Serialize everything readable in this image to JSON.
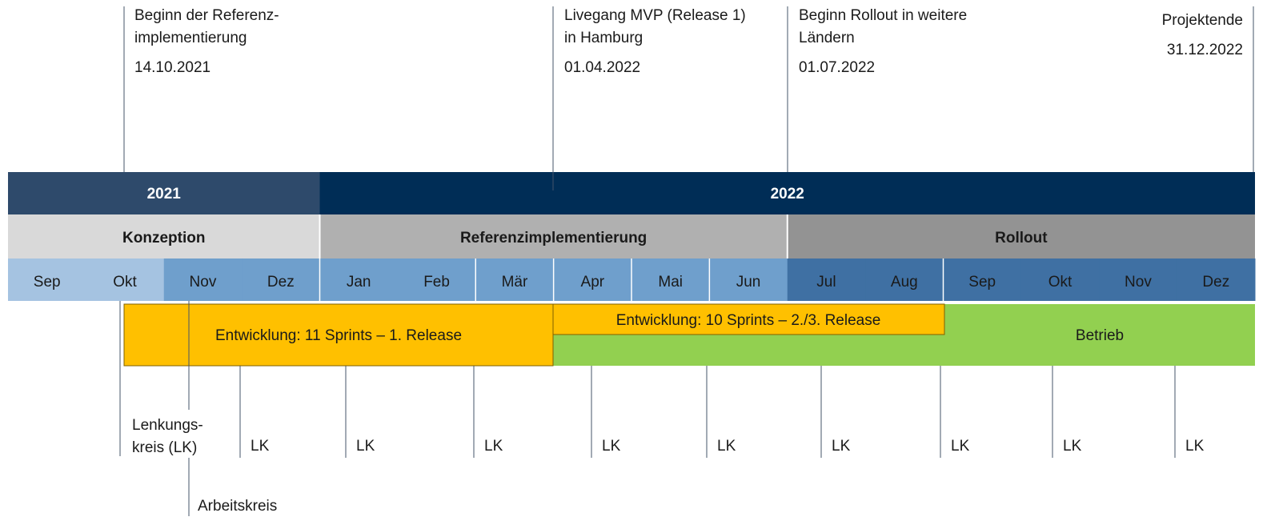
{
  "milestones": [
    {
      "label": [
        "Beginn der Referenz-",
        "implementierung"
      ],
      "date": "14.10.2021"
    },
    {
      "label": [
        "Livegang MVP (Release 1)",
        "in Hamburg"
      ],
      "date": "01.04.2022"
    },
    {
      "label": [
        "Beginn Rollout in weitere",
        "Ländern"
      ],
      "date": "01.07.2022"
    },
    {
      "label": [
        "Projektende"
      ],
      "date": "31.12.2022"
    }
  ],
  "years": [
    "2021",
    "2022"
  ],
  "phases": [
    "Konzeption",
    "Referenzimplementierung",
    "Rollout"
  ],
  "months": [
    "Sep",
    "Okt",
    "Nov",
    "Dez",
    "Jan",
    "Feb",
    "Mär",
    "Apr",
    "Mai",
    "Jun",
    "Jul",
    "Aug",
    "Sep",
    "Okt",
    "Nov",
    "Dez"
  ],
  "bars": [
    "Entwicklung: 11 Sprints – 1. Release",
    "Entwicklung: 10 Sprints – 2./3. Release",
    "Betrieb"
  ],
  "lenkungskreis": {
    "label": [
      "Lenkungs-",
      "kreis (LK)"
    ],
    "markers": [
      "LK",
      "LK",
      "LK",
      "LK",
      "LK",
      "LK",
      "LK",
      "LK",
      "LK",
      "LK"
    ]
  },
  "arbeitskreis": "Arbeitskreis"
}
